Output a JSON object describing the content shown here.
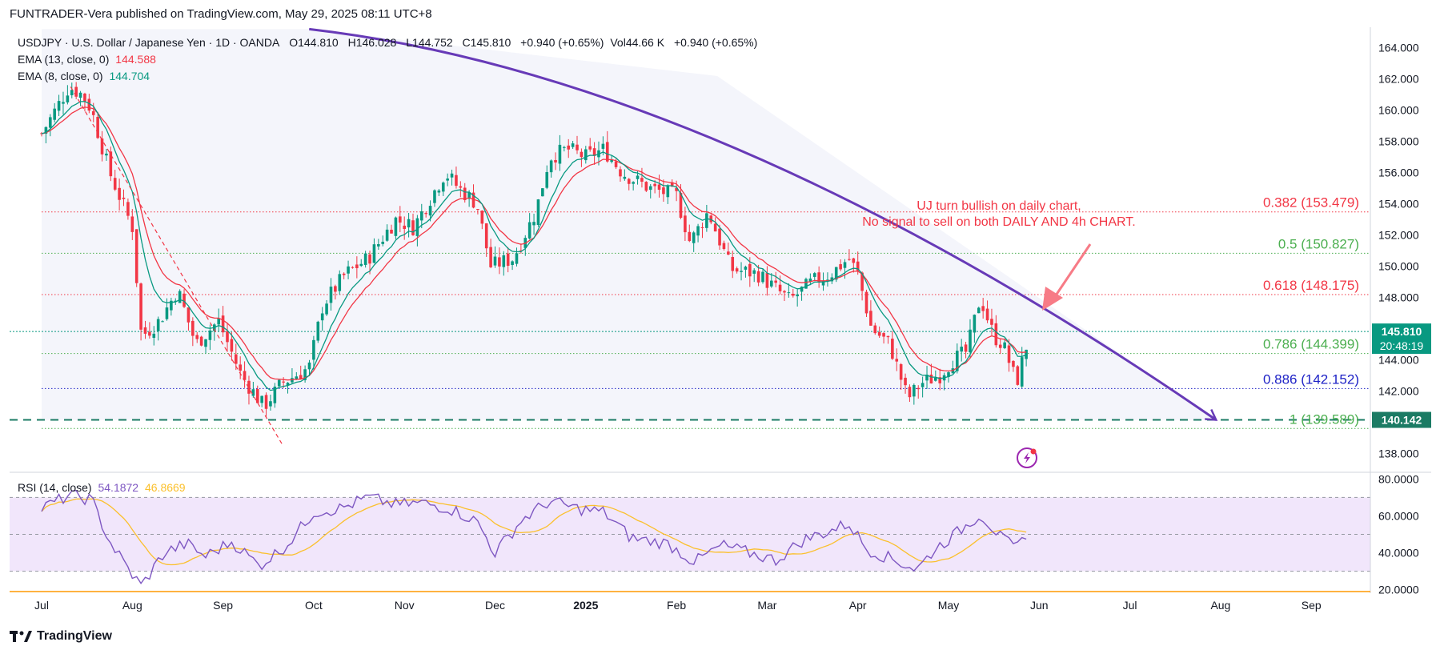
{
  "header": {
    "publisher_line": "FUNTRADER-Vera published on TradingView.com, May 29, 2025 08:11 UTC+8"
  },
  "legend": {
    "symbol": "USDJPY · U.S. Dollar / Japanese Yen · 1D · OANDA",
    "o_label": "O",
    "o_value": "144.810",
    "h_label": "H",
    "h_value": "146.028",
    "l_label": "L",
    "l_value": "144.752",
    "c_label": "C",
    "c_value": "145.810",
    "change": "+0.940 (+0.65%)",
    "vol_label": "Vol",
    "vol_value": "44.66 K",
    "vol_change": "+0.940 (+0.65%)",
    "ema13_label": "EMA (13, close, 0)",
    "ema13_value": "144.588",
    "ema8_label": "EMA (8, close, 0)",
    "ema8_value": "144.704",
    "rsi_label": "RSI (14, close)",
    "rsi_value": "54.1872",
    "rsi_ma_value": "46.8669"
  },
  "colors": {
    "up": "#089981",
    "down": "#f23645",
    "ema13": "#f23645",
    "ema8": "#089981",
    "trendline": "#673ab7",
    "rsi": "#7e57c2",
    "rsi_ma": "#fbc02d",
    "rsi_band": "#f1e6fb"
  },
  "annotation": {
    "line1": "UJ turn bullish on daily chart,",
    "line2": "No signal to sell on both DAILY AND 4h CHART."
  },
  "price_badge": {
    "price": "145.810",
    "countdown": "20:48:19"
  },
  "support_badge": "140.142",
  "footer": {
    "brand": "TradingView"
  },
  "chart_data": [
    {
      "type": "candlestick",
      "title": "USDJPY · U.S. Dollar / Japanese Yen · 1D · OANDA",
      "ylim": [
        137.5,
        164.5
      ],
      "y_ticks": [
        "164.000",
        "162.000",
        "160.000",
        "158.000",
        "156.000",
        "154.000",
        "152.000",
        "150.000",
        "148.000",
        "146.000",
        "144.000",
        "142.000",
        "140.000",
        "138.000"
      ],
      "x_ticks": [
        "Jul",
        "Aug",
        "Sep",
        "Oct",
        "Nov",
        "Dec",
        "2025",
        "Feb",
        "Mar",
        "Apr",
        "May",
        "Jun",
        "Jul",
        "Aug",
        "Sep"
      ],
      "x_tick_months_index": [
        0,
        1,
        2,
        3,
        4,
        5,
        6,
        7,
        8,
        9,
        10,
        11,
        12,
        13,
        14
      ],
      "monthly_anchor_prices": [
        {
          "m": 0.0,
          "p": 158.5
        },
        {
          "m": 0.3,
          "p": 161.5
        },
        {
          "m": 0.45,
          "p": 161.0
        },
        {
          "m": 0.55,
          "p": 160.0
        },
        {
          "m": 0.75,
          "p": 156.0
        },
        {
          "m": 1.0,
          "p": 152.5
        },
        {
          "m": 1.1,
          "p": 145.5
        },
        {
          "m": 1.3,
          "p": 146.5
        },
        {
          "m": 1.5,
          "p": 148.5
        },
        {
          "m": 1.7,
          "p": 145.0
        },
        {
          "m": 1.95,
          "p": 146.5
        },
        {
          "m": 2.2,
          "p": 143.0
        },
        {
          "m": 2.45,
          "p": 141.0
        },
        {
          "m": 2.65,
          "p": 142.5
        },
        {
          "m": 2.95,
          "p": 143.5
        },
        {
          "m": 3.1,
          "p": 147.5
        },
        {
          "m": 3.35,
          "p": 149.5
        },
        {
          "m": 3.6,
          "p": 150.5
        },
        {
          "m": 3.9,
          "p": 153.0
        },
        {
          "m": 4.1,
          "p": 152.5
        },
        {
          "m": 4.45,
          "p": 156.0
        },
        {
          "m": 4.6,
          "p": 155.0
        },
        {
          "m": 4.8,
          "p": 154.0
        },
        {
          "m": 4.95,
          "p": 150.0
        },
        {
          "m": 5.2,
          "p": 150.5
        },
        {
          "m": 5.45,
          "p": 153.5
        },
        {
          "m": 5.6,
          "p": 157.0
        },
        {
          "m": 5.8,
          "p": 157.5
        },
        {
          "m": 6.0,
          "p": 157.0
        },
        {
          "m": 6.2,
          "p": 157.5
        },
        {
          "m": 6.4,
          "p": 156.0
        },
        {
          "m": 6.7,
          "p": 155.0
        },
        {
          "m": 7.0,
          "p": 154.5
        },
        {
          "m": 7.15,
          "p": 151.5
        },
        {
          "m": 7.35,
          "p": 153.5
        },
        {
          "m": 7.6,
          "p": 149.8
        },
        {
          "m": 7.9,
          "p": 149.5
        },
        {
          "m": 8.0,
          "p": 149.0
        },
        {
          "m": 8.25,
          "p": 147.8
        },
        {
          "m": 8.5,
          "p": 149.0
        },
        {
          "m": 8.7,
          "p": 149.5
        },
        {
          "m": 8.9,
          "p": 150.5
        },
        {
          "m": 9.0,
          "p": 149.5
        },
        {
          "m": 9.15,
          "p": 146.0
        },
        {
          "m": 9.35,
          "p": 145.0
        },
        {
          "m": 9.55,
          "p": 141.5
        },
        {
          "m": 9.7,
          "p": 142.5
        },
        {
          "m": 9.9,
          "p": 143.0
        },
        {
          "m": 10.05,
          "p": 144.0
        },
        {
          "m": 10.2,
          "p": 144.5
        },
        {
          "m": 10.35,
          "p": 148.0
        },
        {
          "m": 10.5,
          "p": 145.5
        },
        {
          "m": 10.6,
          "p": 145.0
        },
        {
          "m": 10.75,
          "p": 142.5
        },
        {
          "m": 10.9,
          "p": 145.81
        }
      ],
      "fib_levels": [
        {
          "label": "0.382 (153.479)",
          "price": 153.479,
          "color": "#f23645"
        },
        {
          "label": "0.5 (150.827)",
          "price": 150.827,
          "color": "#4caf50"
        },
        {
          "label": "0.618 (148.175)",
          "price": 148.175,
          "color": "#f23645"
        },
        {
          "label": "0.786 (144.399)",
          "price": 144.399,
          "color": "#4caf50"
        },
        {
          "label": "0.886 (142.152)",
          "price": 142.152,
          "color": "#1e22c6"
        },
        {
          "label": "1 (139.589)",
          "price": 139.589,
          "color": "#4caf50"
        }
      ],
      "horizontal_support": 140.142,
      "current_price": 145.81,
      "trendline": {
        "start_month": 2.95,
        "start_price": 165.2,
        "end_month": 12.95,
        "end_price": 140.142
      }
    },
    {
      "type": "line",
      "title": "RSI (14, close)",
      "ylim": [
        19,
        81
      ],
      "y_ticks": [
        "80.0000",
        "60.0000",
        "40.0000",
        "20.0000"
      ],
      "bands": [
        30,
        70
      ],
      "series": [
        {
          "name": "RSI",
          "color": "#7e57c2"
        },
        {
          "name": "RSI MA",
          "color": "#fbc02d"
        }
      ],
      "rsi_anchor_values": [
        {
          "m": 0.0,
          "v": 64
        },
        {
          "m": 0.3,
          "v": 71
        },
        {
          "m": 0.55,
          "v": 69
        },
        {
          "m": 0.75,
          "v": 46
        },
        {
          "m": 1.0,
          "v": 28
        },
        {
          "m": 1.1,
          "v": 22
        },
        {
          "m": 1.35,
          "v": 40
        },
        {
          "m": 1.6,
          "v": 45
        },
        {
          "m": 1.8,
          "v": 38
        },
        {
          "m": 2.1,
          "v": 46
        },
        {
          "m": 2.4,
          "v": 33
        },
        {
          "m": 2.7,
          "v": 44
        },
        {
          "m": 3.0,
          "v": 62
        },
        {
          "m": 3.3,
          "v": 64
        },
        {
          "m": 3.6,
          "v": 70
        },
        {
          "m": 3.9,
          "v": 66
        },
        {
          "m": 4.2,
          "v": 67
        },
        {
          "m": 4.5,
          "v": 64
        },
        {
          "m": 4.8,
          "v": 57
        },
        {
          "m": 5.0,
          "v": 40
        },
        {
          "m": 5.3,
          "v": 58
        },
        {
          "m": 5.6,
          "v": 68
        },
        {
          "m": 5.9,
          "v": 64
        },
        {
          "m": 6.2,
          "v": 62
        },
        {
          "m": 6.5,
          "v": 48
        },
        {
          "m": 6.9,
          "v": 45
        },
        {
          "m": 7.2,
          "v": 35
        },
        {
          "m": 7.5,
          "v": 44
        },
        {
          "m": 7.8,
          "v": 40
        },
        {
          "m": 8.1,
          "v": 36
        },
        {
          "m": 8.4,
          "v": 47
        },
        {
          "m": 8.7,
          "v": 52
        },
        {
          "m": 8.9,
          "v": 56
        },
        {
          "m": 9.1,
          "v": 42
        },
        {
          "m": 9.4,
          "v": 36
        },
        {
          "m": 9.65,
          "v": 31
        },
        {
          "m": 9.85,
          "v": 42
        },
        {
          "m": 10.1,
          "v": 51
        },
        {
          "m": 10.35,
          "v": 61
        },
        {
          "m": 10.6,
          "v": 47
        },
        {
          "m": 10.75,
          "v": 42
        },
        {
          "m": 10.9,
          "v": 54.19
        }
      ]
    }
  ]
}
